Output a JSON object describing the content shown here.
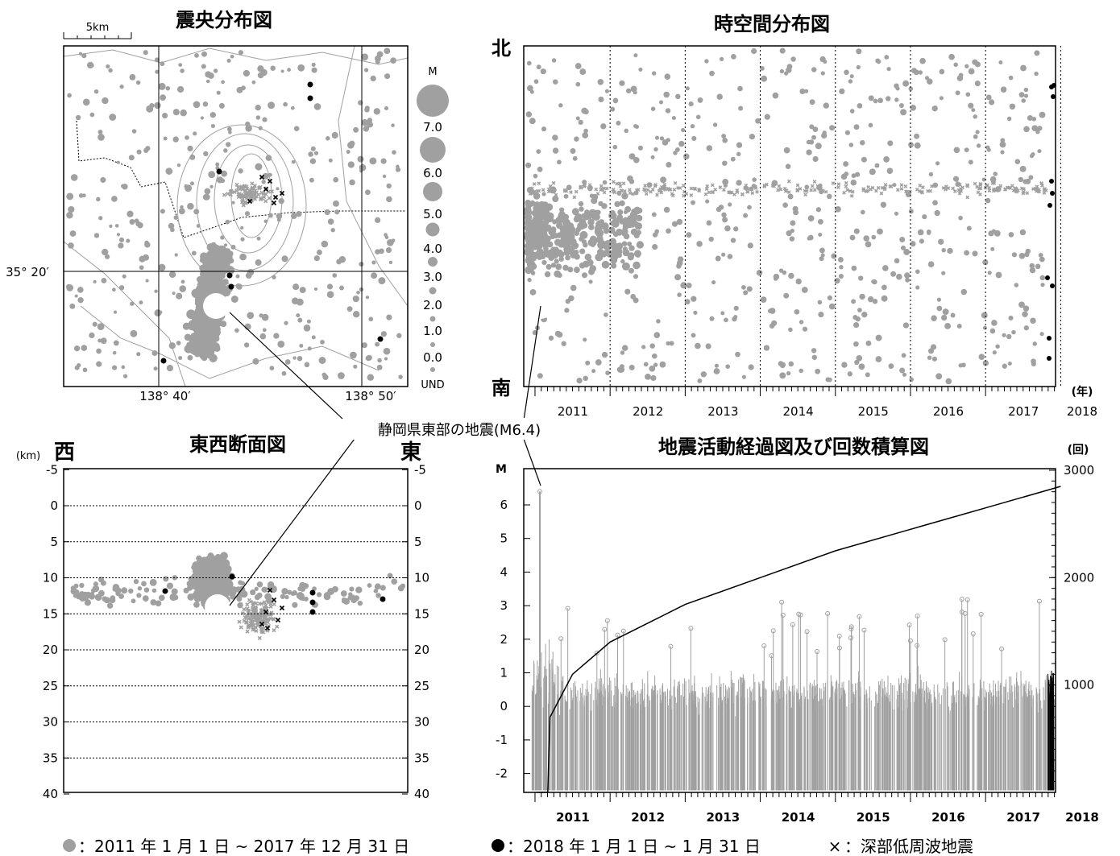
{
  "titles": {
    "epicenter": "震央分布図",
    "spacetime": "時空間分布図",
    "section": "東西断面図",
    "activity": "地震活動経過図及び回数積算図"
  },
  "epicenter": {
    "scale_label": "5km",
    "lat_label": "35° 20′",
    "lon_labels": [
      "138° 40′",
      "138° 50′"
    ],
    "mag_legend_title": "M",
    "mag_legend": [
      "7.0",
      "6.0",
      "5.0",
      "4.0",
      "3.0",
      "2.0",
      "1.0",
      "0.0",
      "UND"
    ]
  },
  "spacetime": {
    "north": "北",
    "south": "南",
    "year_unit": "(年)"
  },
  "section": {
    "km_unit": "(km)",
    "west": "西",
    "east": "東",
    "depth_ticks": [
      "-5",
      "0",
      "5",
      "10",
      "15",
      "20",
      "25",
      "30",
      "35",
      "40"
    ]
  },
  "activity": {
    "m_label": "M",
    "count_unit": "(回)",
    "m_ticks": [
      "6",
      "5",
      "4",
      "3",
      "2",
      "1",
      "0",
      "-1",
      "-2"
    ],
    "count_ticks": [
      "3000",
      "2000",
      "1000"
    ]
  },
  "years": [
    "2011",
    "2012",
    "2013",
    "2014",
    "2015",
    "2016",
    "2017",
    "2018"
  ],
  "annotation": "静岡県東部の地震(M6.4)",
  "legend": {
    "period_gray": "：2011 年 1 月 1 日 ~ 2017 年 12 月 31 日",
    "period_black": "：2018 年 1 月 1 日 ~  1 月 31 日",
    "lowfreq": "：深部低周波地震",
    "cross": "×"
  },
  "chart_data": [
    {
      "type": "scatter",
      "title": "震央分布図",
      "note": "epicenter map, gray = 2011-2017, black = Jan 2018, white circle = M6.4 mainshock"
    },
    {
      "type": "scatter",
      "title": "時空間分布図",
      "x_range": [
        2011,
        2018
      ]
    },
    {
      "type": "scatter",
      "title": "東西断面図",
      "ylim": [
        -5,
        40
      ],
      "ylabel": "(km)"
    },
    {
      "type": "bar",
      "title": "地震活動経過図及び回数積算図",
      "x_range": [
        2011,
        2018
      ],
      "ylim": [
        -2.5,
        6.5
      ],
      "ylabel": "M",
      "y2lim": [
        0,
        3000
      ],
      "y2label": "(回)",
      "series": [
        {
          "values": [
            [
              2011.17,
              0
            ],
            [
              2011.2,
              700
            ],
            [
              2011.5,
              1100
            ],
            [
              2012.0,
              1400
            ],
            [
              2013.0,
              1750
            ],
            [
              2014.0,
              2000
            ],
            [
              2015.0,
              2250
            ],
            [
              2016.0,
              2450
            ],
            [
              2017.0,
              2650
            ],
            [
              2018.0,
              2850
            ]
          ]
        }
      ]
    }
  ]
}
